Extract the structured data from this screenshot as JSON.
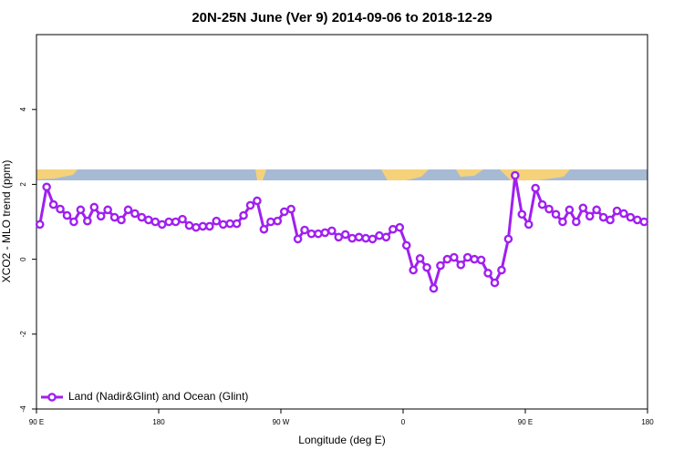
{
  "chart_data": {
    "type": "line",
    "title": "20N-25N June (Ver 9)   2014-09-06 to 2018-12-29",
    "x_label": "Longitude (deg E)",
    "y_label": "XCO2 - MLO trend (ppm)",
    "x": [
      92.5,
      97.5,
      102.5,
      107.5,
      112.5,
      117.5,
      122.5,
      127.5,
      132.5,
      137.5,
      142.5,
      147.5,
      152.5,
      157.5,
      162.5,
      167.5,
      172.5,
      177.5,
      182.5,
      187.5,
      192.5,
      197.5,
      202.5,
      207.5,
      212.5,
      217.5,
      222.5,
      227.5,
      232.5,
      237.5,
      242.5,
      247.5,
      252.5,
      257.5,
      262.5,
      267.5,
      272.5,
      277.5,
      282.5,
      287.5,
      292.5,
      297.5,
      302.5,
      307.5,
      312.5,
      317.5,
      322.5,
      327.5,
      332.5,
      337.5,
      342.5,
      347.5,
      352.5,
      357.5,
      362.5,
      367.5,
      372.5,
      377.5,
      382.5,
      387.5,
      392.5,
      397.5,
      402.5,
      407.5,
      412.5,
      417.5,
      422.5,
      427.5,
      432.5,
      437.5,
      442.5,
      447.5,
      452.5,
      457.5,
      462.5,
      467.5,
      472.5,
      477.5,
      482.5,
      487.5,
      492.5,
      497.5,
      502.5,
      507.5,
      512.5,
      517.5,
      522.5,
      527.5,
      532.5,
      537.5
    ],
    "series": [
      {
        "name": "Land (Nadir&Glint) and Ocean (Glint)",
        "color": "#a020f0",
        "values": [
          0.93,
          1.93,
          1.46,
          1.34,
          1.17,
          1.0,
          1.32,
          1.02,
          1.39,
          1.15,
          1.32,
          1.12,
          1.05,
          1.32,
          1.22,
          1.12,
          1.05,
          1.0,
          0.93,
          1.0,
          1.0,
          1.07,
          0.9,
          0.85,
          0.88,
          0.88,
          1.02,
          0.93,
          0.95,
          0.95,
          1.17,
          1.44,
          1.56,
          0.8,
          1.0,
          1.02,
          1.27,
          1.34,
          0.54,
          0.78,
          0.68,
          0.68,
          0.71,
          0.76,
          0.59,
          0.66,
          0.56,
          0.59,
          0.56,
          0.54,
          0.63,
          0.59,
          0.8,
          0.85,
          0.37,
          -0.29,
          0.02,
          -0.22,
          -0.78,
          -0.17,
          0.0,
          0.05,
          -0.15,
          0.05,
          0.0,
          -0.02,
          -0.37,
          -0.63,
          -0.29,
          0.54,
          2.24,
          1.2,
          0.93,
          1.9,
          1.46,
          1.34,
          1.2,
          1.0,
          1.32,
          1.0,
          1.37,
          1.15,
          1.32,
          1.12,
          1.05,
          1.29,
          1.22,
          1.12,
          1.05,
          1.0
        ]
      }
    ],
    "xlim": [
      90,
      540
    ],
    "xticks": [
      {
        "value": 90,
        "label": "90 E"
      },
      180,
      {
        "value": 270,
        "label": "90 W"
      },
      {
        "value": 360,
        "label": "0"
      },
      {
        "value": 450,
        "label": "90 E"
      },
      {
        "value": 540,
        "label": "180"
      }
    ],
    "ylim": [
      -4,
      6
    ],
    "yticks": [
      -4,
      -2,
      0,
      2,
      4
    ],
    "legend": "bottom-left"
  }
}
